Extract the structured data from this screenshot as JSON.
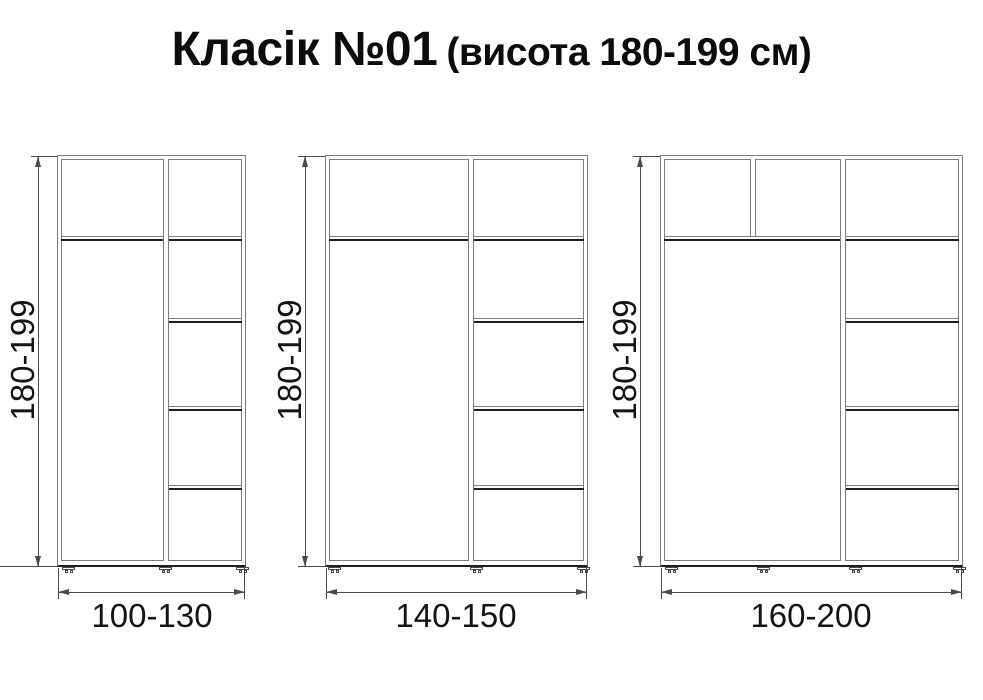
{
  "title": {
    "main": "Класік №01",
    "suffix": "(висота 180-199 см)"
  },
  "wardrobes": [
    {
      "height_label": "180-199",
      "width_label": "100-130"
    },
    {
      "height_label": "180-199",
      "width_label": "140-150"
    },
    {
      "height_label": "180-199",
      "width_label": "160-200"
    }
  ],
  "colors": {
    "background": "#ffffff",
    "thin_line": "#7d7d7d",
    "heavy_line": "#1f1f1f",
    "dimension_line": "#4a4a4a",
    "text": "#141414"
  }
}
